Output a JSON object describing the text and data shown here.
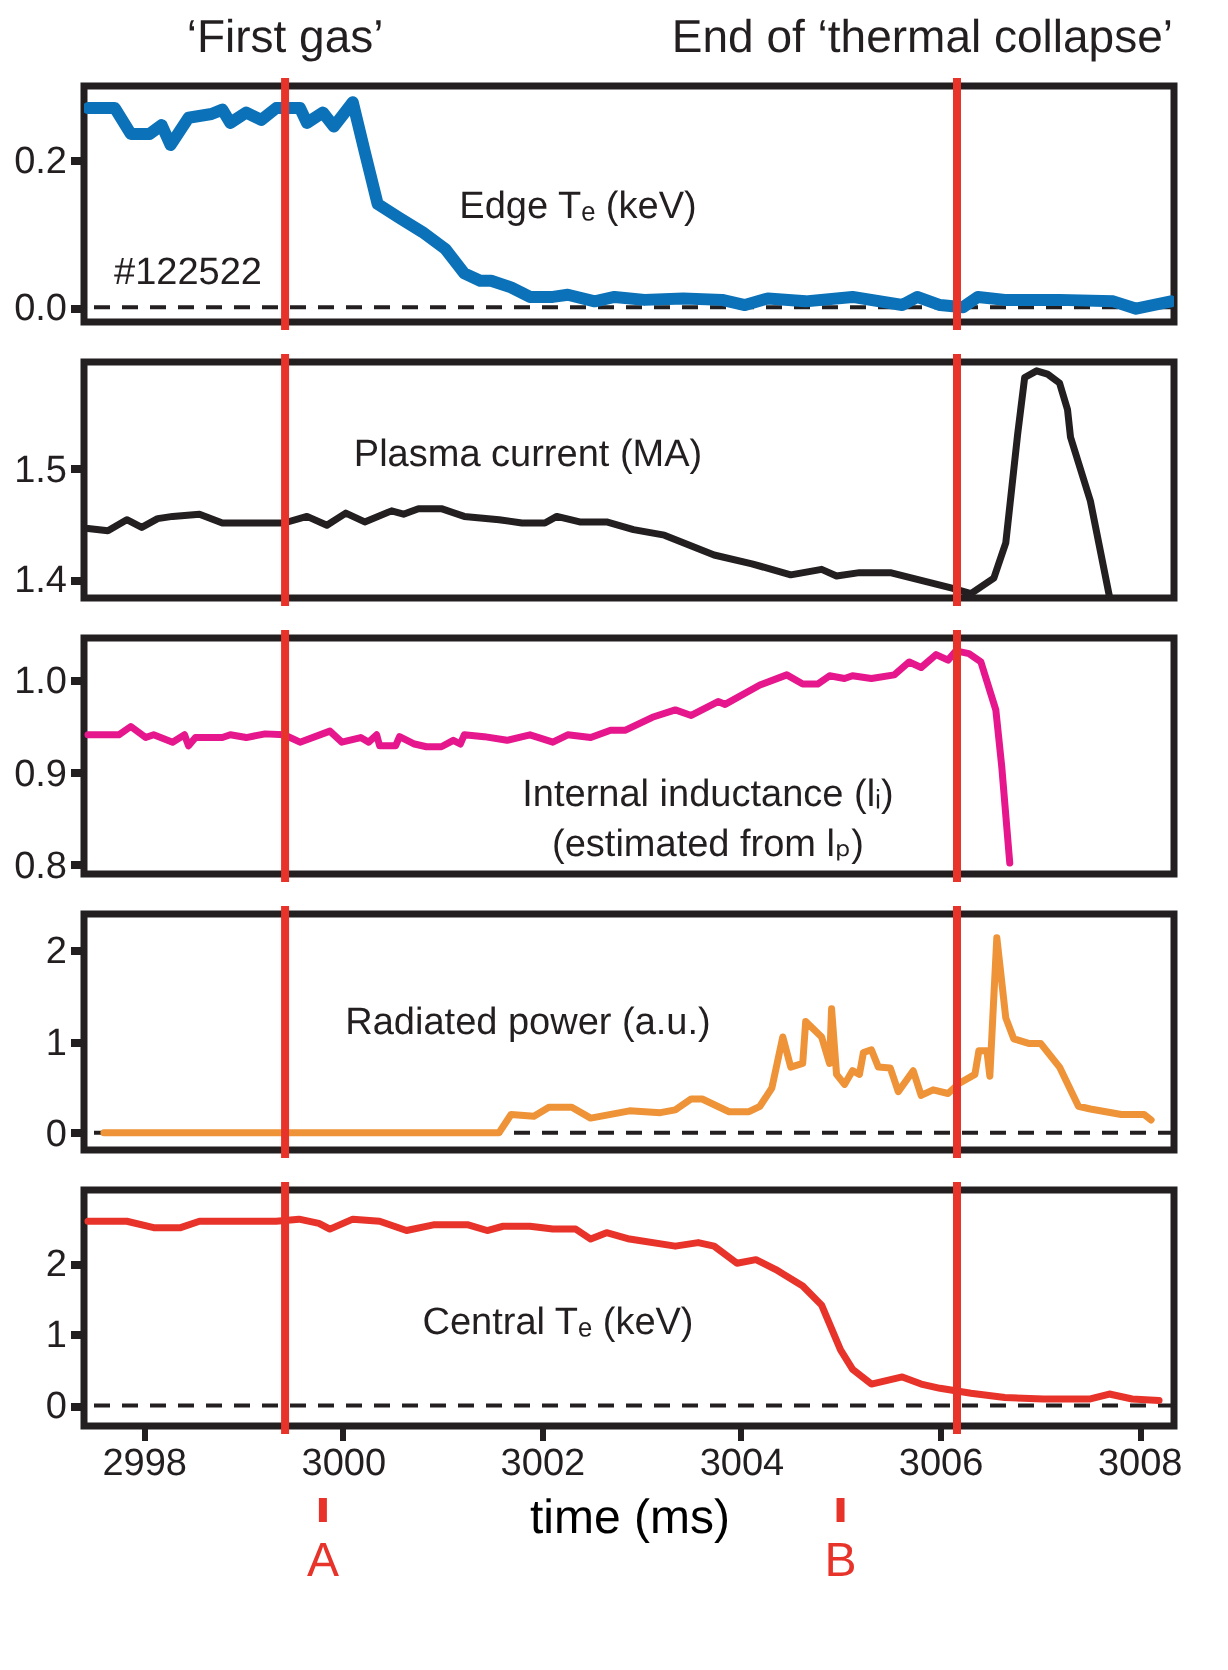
{
  "chart_data": [
    {
      "type": "line",
      "xlim": [
        2997.4,
        3008.35
      ],
      "ylim": [
        -0.02,
        0.3
      ],
      "yticks": [
        {
          "value": 0,
          "label": "0.0"
        },
        {
          "value": 0.2,
          "label": "0.2"
        }
      ],
      "tick_labels": "y",
      "x": [
        2997.44,
        2997.71,
        2997.87,
        2998.06,
        2998.18,
        2998.27,
        2998.45,
        2998.68,
        2998.79,
        2998.87,
        2999.03,
        2999.18,
        2999.33,
        2999.57,
        2999.64,
        2999.8,
        2999.91,
        3000.1,
        3000.22,
        3000.35,
        3000.57,
        3000.8,
        3001.03,
        3001.22,
        3001.38,
        3001.49,
        3001.69,
        3001.88,
        3002.11,
        3002.26,
        3002.53,
        3002.73,
        3003.03,
        3003.42,
        3003.81,
        3004.04,
        3004.27,
        3004.65,
        3005.12,
        3005.62,
        3005.77,
        3006.0,
        3006.23,
        3006.38,
        3006.65,
        3007.2,
        3007.74,
        3007.97,
        3008.32
      ],
      "series": [
        {
          "name": "Edge Tₑ (keV)",
          "color": "#0b72b9",
          "values": [
            0.27,
            0.27,
            0.235,
            0.235,
            0.247,
            0.22,
            0.257,
            0.262,
            0.268,
            0.25,
            0.264,
            0.254,
            0.27,
            0.27,
            0.25,
            0.264,
            0.245,
            0.278,
            0.211,
            0.14,
            0.121,
            0.102,
            0.079,
            0.046,
            0.036,
            0.036,
            0.027,
            0.014,
            0.014,
            0.017,
            0.008,
            0.014,
            0.01,
            0.012,
            0.01,
            0.003,
            0.012,
            0.008,
            0.014,
            0.003,
            0.014,
            0.003,
            0,
            0.014,
            0.01,
            0.01,
            0.008,
            -0.002,
            0.008
          ]
        }
      ],
      "ref_lines": [
        {
          "axis": "x",
          "value": 2999.42,
          "label": "‘First gas’",
          "color": "#e8332a"
        },
        {
          "axis": "x",
          "value": 3006.17,
          "label": "End of ‘thermal collapse’",
          "color": "#e8332a"
        },
        {
          "axis": "y",
          "value": 0,
          "color": "#231f20",
          "line_style": "dashed"
        }
      ],
      "annotations": [
        "#122522"
      ]
    },
    {
      "type": "line",
      "xlim": [
        2997.4,
        3008.35
      ],
      "ylim": [
        1.383,
        1.597
      ],
      "yticks": [
        1.4,
        1.5
      ],
      "tick_labels": "y",
      "x": [
        2997.44,
        2997.64,
        2997.83,
        2997.98,
        2998.14,
        2998.29,
        2998.56,
        2998.79,
        2999.41,
        2999.64,
        2999.84,
        3000.03,
        3000.22,
        3000.49,
        3000.61,
        3000.76,
        3000.99,
        3001.22,
        3001.57,
        3001.8,
        3002.03,
        3002.15,
        3002.38,
        3002.65,
        3002.92,
        3003.23,
        3003.73,
        3004.11,
        3004.5,
        3004.81,
        3004.96,
        3005.19,
        3005.5,
        3005.81,
        3006.12,
        3006.31,
        3006.54,
        3006.66,
        3006.78,
        3006.85,
        3006.97,
        3007.08,
        3007.2,
        3007.28,
        3007.31,
        3007.51,
        3007.7
      ],
      "series": [
        {
          "name": "Plasma current (MA)",
          "color": "#231f20",
          "values": [
            1.446,
            1.444,
            1.454,
            1.447,
            1.455,
            1.457,
            1.459,
            1.451,
            1.451,
            1.457,
            1.449,
            1.46,
            1.452,
            1.462,
            1.459,
            1.464,
            1.464,
            1.457,
            1.454,
            1.451,
            1.451,
            1.457,
            1.452,
            1.452,
            1.445,
            1.44,
            1.422,
            1.414,
            1.404,
            1.409,
            1.403,
            1.406,
            1.406,
            1.399,
            1.392,
            1.387,
            1.401,
            1.433,
            1.532,
            1.583,
            1.589,
            1.586,
            1.578,
            1.554,
            1.529,
            1.471,
            1.385
          ]
        }
      ],
      "ref_lines": [
        {
          "axis": "x",
          "value": 2999.42,
          "color": "#e8332a"
        },
        {
          "axis": "x",
          "value": 3006.17,
          "color": "#e8332a"
        }
      ]
    },
    {
      "type": "line",
      "xlim": [
        2997.4,
        3008.35
      ],
      "ylim": [
        0.79,
        1.046
      ],
      "yticks": [
        {
          "value": 0.8,
          "label": "0.8"
        },
        0.9,
        {
          "value": 1,
          "label": "1.0"
        }
      ],
      "tick_labels": "y",
      "x": [
        2997.44,
        2997.75,
        2997.87,
        2998.02,
        2998.1,
        2998.29,
        2998.41,
        2998.45,
        2998.52,
        2998.79,
        2998.87,
        2999.03,
        2999.22,
        2999.41,
        2999.57,
        2999.87,
        2999.99,
        3000.18,
        3000.26,
        3000.34,
        3000.37,
        3000.53,
        3000.57,
        3000.72,
        3000.84,
        3000.99,
        3001.11,
        3001.18,
        3001.22,
        3001.42,
        3001.65,
        3001.88,
        3002.11,
        3002.26,
        3002.49,
        3002.69,
        3002.84,
        3003.11,
        3003.34,
        3003.5,
        3003.77,
        3003.84,
        3004.19,
        3004.46,
        3004.62,
        3004.77,
        3004.89,
        3005.04,
        3005.12,
        3005.31,
        3005.54,
        3005.69,
        3005.81,
        3005.96,
        3006.08,
        3006.16,
        3006.29,
        3006.41,
        3006.56,
        3006.62,
        3006.7
      ],
      "series": [
        {
          "name": "Internal inductance (lᵢ)\n(estimated from lₚ)",
          "color": "#e6168c",
          "values": [
            0.941,
            0.941,
            0.95,
            0.938,
            0.941,
            0.933,
            0.941,
            0.929,
            0.938,
            0.938,
            0.941,
            0.938,
            0.942,
            0.941,
            0.933,
            0.945,
            0.933,
            0.938,
            0.933,
            0.941,
            0.929,
            0.929,
            0.939,
            0.931,
            0.928,
            0.928,
            0.935,
            0.931,
            0.941,
            0.939,
            0.935,
            0.941,
            0.933,
            0.941,
            0.938,
            0.946,
            0.946,
            0.96,
            0.968,
            0.962,
            0.977,
            0.974,
            0.995,
            1.006,
            0.996,
            0.996,
            1.005,
            1.002,
            1.005,
            1.002,
            1.006,
            1.02,
            1.014,
            1.028,
            1.022,
            1.032,
            1.029,
            1.02,
            0.968,
            0.906,
            0.802
          ]
        }
      ],
      "ref_lines": [
        {
          "axis": "x",
          "value": 2999.42,
          "color": "#e8332a"
        },
        {
          "axis": "x",
          "value": 3006.17,
          "color": "#e8332a"
        }
      ]
    },
    {
      "type": "line",
      "xlim": [
        2997.4,
        3008.35
      ],
      "ylim": [
        -0.19,
        2.4
      ],
      "yticks": [
        0,
        1,
        2
      ],
      "tick_labels": "y",
      "x": [
        2997.6,
        3001.57,
        3001.69,
        3001.92,
        3002.07,
        3002.3,
        3002.49,
        3002.88,
        3003.19,
        3003.34,
        3003.5,
        3003.61,
        3003.88,
        3004.08,
        3004.19,
        3004.31,
        3004.42,
        3004.5,
        3004.62,
        3004.65,
        3004.81,
        3004.89,
        3004.91,
        3004.96,
        3005.04,
        3005.12,
        3005.19,
        3005.23,
        3005.31,
        3005.38,
        3005.5,
        3005.58,
        3005.73,
        3005.81,
        3005.93,
        3006.08,
        3006.19,
        3006.35,
        3006.39,
        3006.47,
        3006.5,
        3006.57,
        3006.66,
        3006.74,
        3006.89,
        3007.01,
        3007.2,
        3007.39,
        3007.51,
        3007.82,
        3008.05,
        3008.12
      ],
      "series": [
        {
          "name": "Radiated power (a.u.)",
          "color": "#ee9338",
          "values": [
            0,
            0,
            0.2,
            0.18,
            0.28,
            0.28,
            0.16,
            0.24,
            0.22,
            0.25,
            0.37,
            0.37,
            0.23,
            0.23,
            0.29,
            0.49,
            1.05,
            0.72,
            0.76,
            1.22,
            1.05,
            0.76,
            1.36,
            0.64,
            0.53,
            0.68,
            0.64,
            0.88,
            0.91,
            0.72,
            0.71,
            0.45,
            0.68,
            0.41,
            0.47,
            0.43,
            0.54,
            0.64,
            0.9,
            0.9,
            0.62,
            2.14,
            1.26,
            1.03,
            0.98,
            0.98,
            0.72,
            0.29,
            0.26,
            0.2,
            0.2,
            0.14
          ]
        }
      ],
      "ref_lines": [
        {
          "axis": "x",
          "value": 2999.42,
          "color": "#e8332a"
        },
        {
          "axis": "x",
          "value": 3006.17,
          "color": "#e8332a"
        },
        {
          "axis": "y",
          "value": 0,
          "color": "#231f20",
          "line_style": "dashed"
        }
      ]
    },
    {
      "type": "line",
      "xlim": [
        2997.4,
        3008.35
      ],
      "ylim": [
        -0.29,
        3.03
      ],
      "xticks": [
        2998,
        3000,
        3002,
        3004,
        3006,
        3008
      ],
      "yticks": [
        0,
        1,
        2
      ],
      "xlabel": "time (ms)",
      "x": [
        2997.44,
        2997.83,
        2998.1,
        2998.37,
        2998.56,
        2999.33,
        2999.56,
        2999.76,
        2999.87,
        3000.1,
        3000.37,
        3000.64,
        3000.91,
        3001.26,
        3001.45,
        3001.61,
        3001.88,
        3002.11,
        3002.34,
        3002.49,
        3002.65,
        3002.88,
        3003.34,
        3003.57,
        3003.73,
        3003.96,
        3004.15,
        3004.35,
        3004.62,
        3004.81,
        3005.0,
        3005.12,
        3005.31,
        3005.62,
        3005.81,
        3006.0,
        3006.31,
        3006.65,
        3007.04,
        3007.51,
        3007.7,
        3007.93,
        3008.2
      ],
      "series": [
        {
          "name": "Central Tₑ (keV)",
          "color": "#e8332a",
          "values": [
            2.59,
            2.59,
            2.5,
            2.5,
            2.59,
            2.59,
            2.62,
            2.56,
            2.48,
            2.62,
            2.59,
            2.46,
            2.54,
            2.54,
            2.46,
            2.52,
            2.52,
            2.48,
            2.48,
            2.34,
            2.43,
            2.34,
            2.24,
            2.29,
            2.24,
            2.0,
            2.05,
            1.91,
            1.68,
            1.41,
            0.78,
            0.51,
            0.3,
            0.4,
            0.3,
            0.24,
            0.17,
            0.11,
            0.09,
            0.09,
            0.16,
            0.09,
            0.07
          ]
        }
      ],
      "ref_lines": [
        {
          "axis": "x",
          "value": 2999.42,
          "color": "#e8332a"
        },
        {
          "axis": "x",
          "value": 3006.17,
          "color": "#e8332a"
        },
        {
          "axis": "y",
          "value": 0,
          "color": "#231f20",
          "line_style": "dashed"
        }
      ],
      "annotations": [
        {
          "text": "A",
          "x": 2999.8
        },
        {
          "text": "B",
          "x": 3005.0
        }
      ]
    }
  ]
}
